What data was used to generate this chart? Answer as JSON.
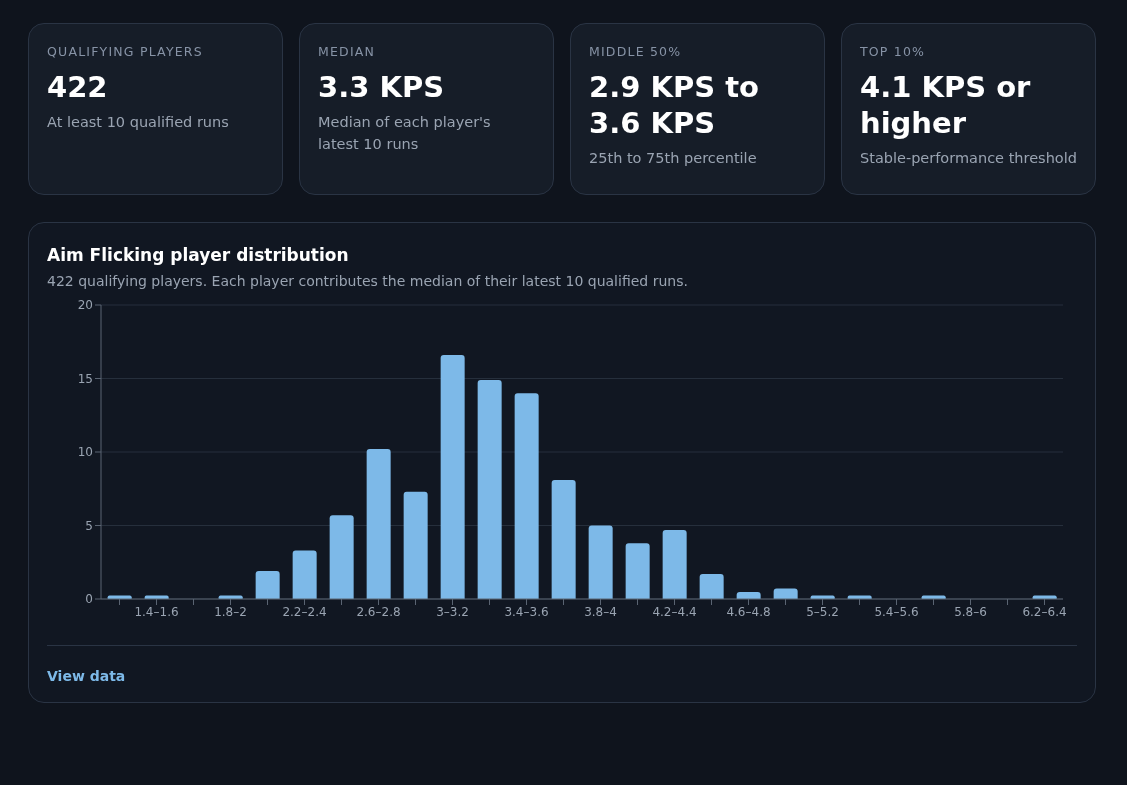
{
  "chart_data": [
    {
      "type": "other",
      "title": "QUALIFYING PLAYERS",
      "subtitle": "422",
      "annotations": [
        "At least 10 qualified runs"
      ]
    },
    {
      "type": "other",
      "title": "MEDIAN",
      "subtitle": "3.3 KPS",
      "annotations": [
        "Median of each player's latest 10 runs"
      ]
    },
    {
      "type": "other",
      "title": "MIDDLE 50%",
      "subtitle": "2.9 KPS to 3.6 KPS",
      "annotations": [
        "25th to 75th percentile"
      ]
    },
    {
      "type": "other",
      "title": "TOP 10%",
      "subtitle": "4.1 KPS or higher",
      "annotations": [
        "Stable-performance threshold"
      ]
    },
    {
      "type": "bar",
      "title": "Aim Flicking player distribution",
      "subtitle": "422 qualifying players. Each player contributes the median of their latest 10 qualified runs.",
      "categories": [
        null,
        "1.4–1.6",
        null,
        "1.8–2",
        null,
        "2.2–2.4",
        null,
        "2.6–2.8",
        null,
        "3–3.2",
        null,
        "3.4–3.6",
        null,
        "3.8–4",
        null,
        "4.2–4.4",
        null,
        "4.6–4.8",
        null,
        "5–5.2",
        null,
        "5.4–5.6",
        null,
        "5.8–6",
        null,
        "6.2–6.4"
      ],
      "values": [
        0.24,
        0.24,
        0,
        0.24,
        1.9,
        3.3,
        5.7,
        10.2,
        7.3,
        16.6,
        14.9,
        14.0,
        8.1,
        5.0,
        3.8,
        4.7,
        1.7,
        0.47,
        0.71,
        0.24,
        0.24,
        0,
        0.24,
        0,
        0,
        0.24
      ],
      "color": "#7db9e8",
      "ylim": [
        0,
        20
      ],
      "yticks": [
        0,
        5,
        10,
        15,
        20
      ],
      "grid": "y",
      "legend": false,
      "annotations": [
        "View data"
      ]
    }
  ]
}
